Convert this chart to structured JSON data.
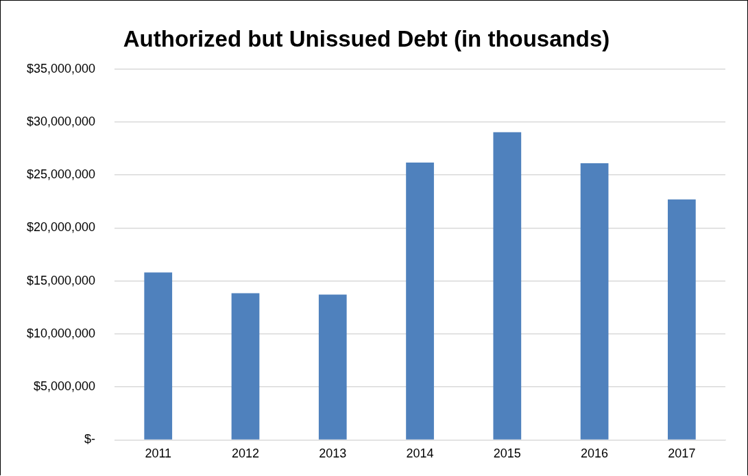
{
  "chart_data": {
    "type": "bar",
    "title": "Authorized but Unissued Debt (in thousands)",
    "categories": [
      "2011",
      "2012",
      "2013",
      "2014",
      "2015",
      "2016",
      "2017"
    ],
    "values": [
      15800000,
      13850000,
      13720000,
      26170000,
      29040000,
      26100000,
      22690000
    ],
    "color": "#4f81bd",
    "ylim": [
      0,
      35000000
    ],
    "yticks": [
      {
        "value": 0,
        "label": "$-"
      },
      {
        "value": 5000000,
        "label": "$5,000,000"
      },
      {
        "value": 10000000,
        "label": "$10,000,000"
      },
      {
        "value": 15000000,
        "label": "$15,000,000"
      },
      {
        "value": 20000000,
        "label": "$20,000,000"
      },
      {
        "value": 25000000,
        "label": "$25,000,000"
      },
      {
        "value": 30000000,
        "label": "$30,000,000"
      },
      {
        "value": 35000000,
        "label": "$35,000,000"
      }
    ],
    "grid": "y",
    "legend": false
  }
}
